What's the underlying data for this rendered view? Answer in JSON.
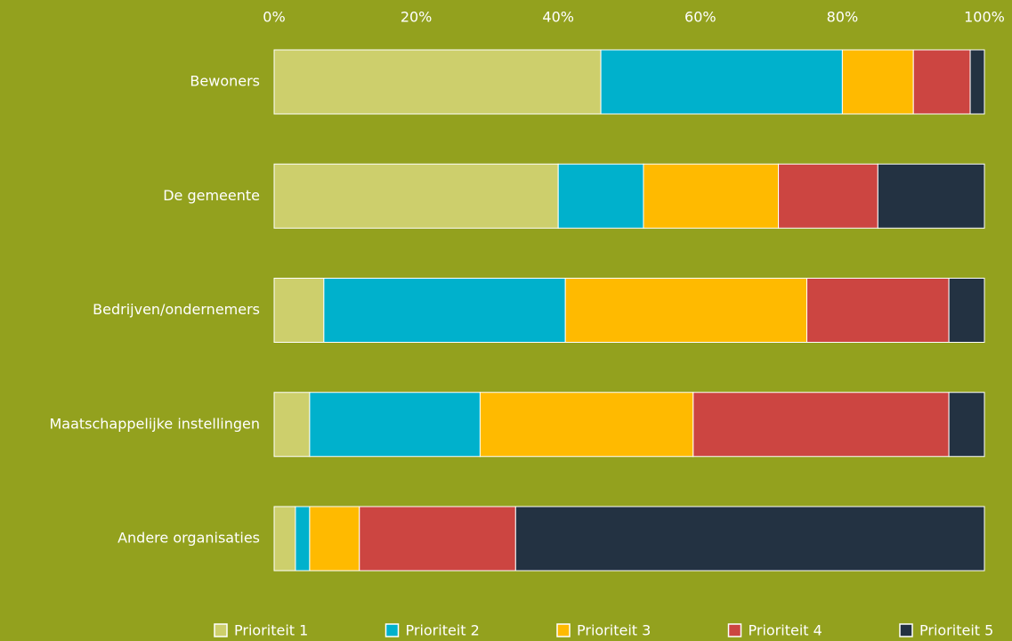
{
  "chart_data": {
    "type": "stacked-bar-horizontal",
    "categories": [
      "Bewoners",
      "De gemeente",
      "Bedrijven/ondernemers",
      "Maatschappelijke instellingen",
      "Andere organisaties"
    ],
    "series": [
      {
        "name": "Prioriteit 1",
        "color": "#cdcf6c",
        "values": [
          46,
          40,
          7,
          5,
          3
        ]
      },
      {
        "name": "Prioriteit 2",
        "color": "#00b1cc",
        "values": [
          34,
          12,
          34,
          24,
          2
        ]
      },
      {
        "name": "Prioriteit 3",
        "color": "#ffba00",
        "values": [
          10,
          19,
          34,
          30,
          7
        ]
      },
      {
        "name": "Prioriteit 4",
        "color": "#cc4541",
        "values": [
          8,
          14,
          20,
          36,
          22
        ]
      },
      {
        "name": "Prioriteit 5",
        "color": "#233242",
        "values": [
          2,
          15,
          5,
          5,
          66
        ]
      }
    ],
    "xlim": [
      0,
      100
    ],
    "xticks": [
      {
        "value": 0,
        "label": "0%"
      },
      {
        "value": 20,
        "label": "20%"
      },
      {
        "value": 40,
        "label": "40%"
      },
      {
        "value": 60,
        "label": "60%"
      },
      {
        "value": 80,
        "label": "80%"
      },
      {
        "value": 100,
        "label": "100%"
      }
    ],
    "legend": "bottom"
  }
}
